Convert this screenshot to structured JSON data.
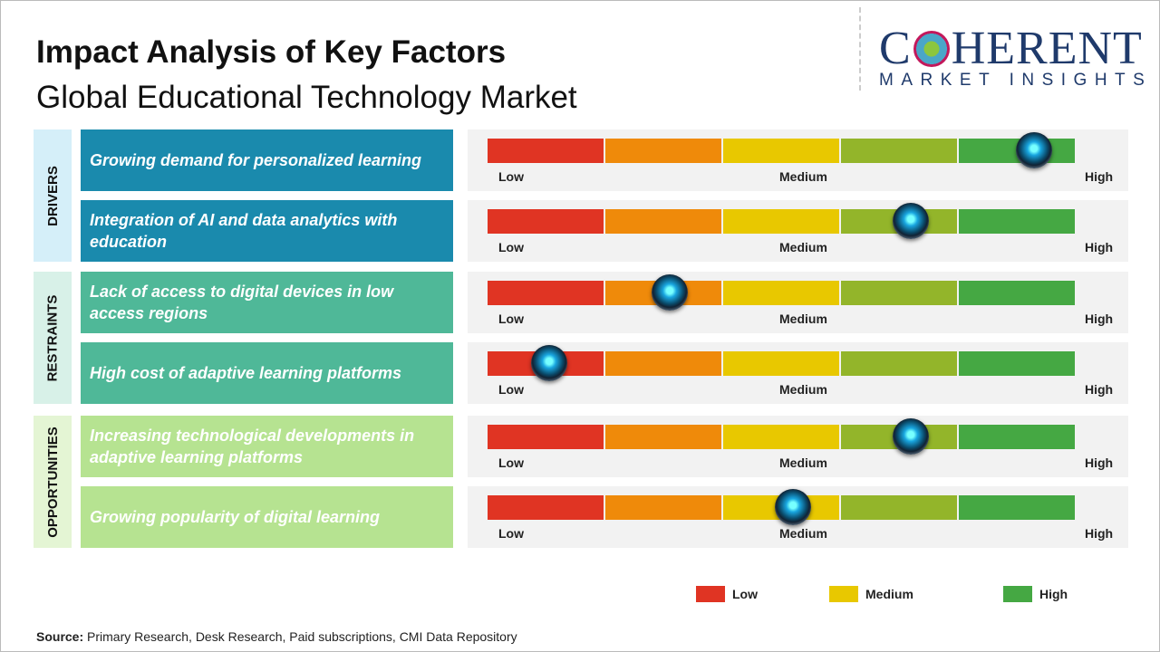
{
  "title": "Impact Analysis of Key Factors",
  "subtitle": "Global Educational Technology Market",
  "logo": {
    "main": "COHERENT",
    "sub": "MARKET INSIGHTS"
  },
  "scale": {
    "low": "Low",
    "medium": "Medium",
    "high": "High"
  },
  "colors": {
    "scale": [
      "#e03423",
      "#ef8a0a",
      "#e8c800",
      "#93b52a",
      "#45a843"
    ],
    "drivers": "#1a8aad",
    "restraints": "#4fb898",
    "opportunities": "#b6e391"
  },
  "chart_data": {
    "type": "gauge",
    "categories": [
      {
        "name": "DRIVERS",
        "bg": "#d5eff9",
        "factors": [
          {
            "label": "Growing demand for personalized learning",
            "value": 0.93
          },
          {
            "label": "Integration of AI and data analytics with education",
            "value": 0.72
          }
        ]
      },
      {
        "name": "RESTRAINTS",
        "bg": "#d8f1e8",
        "factors": [
          {
            "label": "Lack of access to digital devices in low access regions",
            "value": 0.31
          },
          {
            "label": "High cost of adaptive learning platforms",
            "value": 0.105
          }
        ]
      },
      {
        "name": "OPPORTUNITIES",
        "bg": "#e4f5d4",
        "factors": [
          {
            "label": "Increasing technological developments in adaptive learning platforms",
            "value": 0.72
          },
          {
            "label": "Growing popularity of digital learning",
            "value": 0.52
          }
        ]
      }
    ],
    "legend": [
      {
        "label": "Low",
        "color": "#e03423"
      },
      {
        "label": "Medium",
        "color": "#e8c800"
      },
      {
        "label": "High",
        "color": "#45a843"
      }
    ]
  },
  "source": {
    "label": "Source:",
    "text": " Primary Research, Desk Research, Paid subscriptions, CMI Data Repository"
  }
}
